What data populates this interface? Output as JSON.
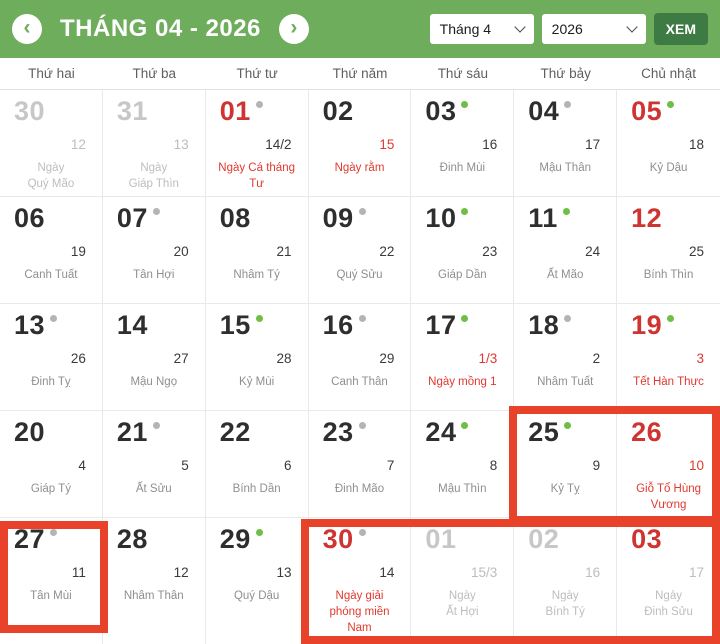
{
  "header": {
    "title": "THÁNG 04 - 2026",
    "month_select_value": "Tháng 4",
    "year_select_value": "2026",
    "view_button_label": "XEM"
  },
  "weekdays": [
    "Thứ hai",
    "Thứ ba",
    "Thứ tư",
    "Thứ năm",
    "Thứ sáu",
    "Thứ bảy",
    "Chủ nhật"
  ],
  "days": [
    {
      "solar": "30",
      "lunar": "12",
      "label": "Ngày\nQuý Mão",
      "muted": true,
      "dot": null,
      "solar_red": false,
      "lunar_red": false,
      "label_red": false
    },
    {
      "solar": "31",
      "lunar": "13",
      "label": "Ngày\nGiáp Thìn",
      "muted": true,
      "dot": null,
      "solar_red": false,
      "lunar_red": false,
      "label_red": false
    },
    {
      "solar": "01",
      "lunar": "14/2",
      "label": "Ngày Cá tháng\nTư",
      "muted": false,
      "dot": "gray",
      "solar_red": true,
      "lunar_red": false,
      "label_red": true
    },
    {
      "solar": "02",
      "lunar": "15",
      "label": "Ngày rằm",
      "muted": false,
      "dot": null,
      "solar_red": false,
      "lunar_red": true,
      "label_red": true
    },
    {
      "solar": "03",
      "lunar": "16",
      "label": "Đinh Mùi",
      "muted": false,
      "dot": "green",
      "solar_red": false,
      "lunar_red": false,
      "label_red": false
    },
    {
      "solar": "04",
      "lunar": "17",
      "label": "Mậu Thân",
      "muted": false,
      "dot": "gray",
      "solar_red": false,
      "lunar_red": false,
      "label_red": false
    },
    {
      "solar": "05",
      "lunar": "18",
      "label": "Kỷ Dậu",
      "muted": false,
      "dot": "green",
      "solar_red": true,
      "lunar_red": false,
      "label_red": false
    },
    {
      "solar": "06",
      "lunar": "19",
      "label": "Canh Tuất",
      "muted": false,
      "dot": null,
      "solar_red": false,
      "lunar_red": false,
      "label_red": false
    },
    {
      "solar": "07",
      "lunar": "20",
      "label": "Tân Hợi",
      "muted": false,
      "dot": "gray",
      "solar_red": false,
      "lunar_red": false,
      "label_red": false
    },
    {
      "solar": "08",
      "lunar": "21",
      "label": "Nhâm Tý",
      "muted": false,
      "dot": null,
      "solar_red": false,
      "lunar_red": false,
      "label_red": false
    },
    {
      "solar": "09",
      "lunar": "22",
      "label": "Quý Sửu",
      "muted": false,
      "dot": "gray",
      "solar_red": false,
      "lunar_red": false,
      "label_red": false
    },
    {
      "solar": "10",
      "lunar": "23",
      "label": "Giáp Dần",
      "muted": false,
      "dot": "green",
      "solar_red": false,
      "lunar_red": false,
      "label_red": false
    },
    {
      "solar": "11",
      "lunar": "24",
      "label": "Ất Mão",
      "muted": false,
      "dot": "green",
      "solar_red": false,
      "lunar_red": false,
      "label_red": false
    },
    {
      "solar": "12",
      "lunar": "25",
      "label": "Bính Thìn",
      "muted": false,
      "dot": null,
      "solar_red": true,
      "lunar_red": false,
      "label_red": false
    },
    {
      "solar": "13",
      "lunar": "26",
      "label": "Đinh Tỵ",
      "muted": false,
      "dot": "gray",
      "solar_red": false,
      "lunar_red": false,
      "label_red": false
    },
    {
      "solar": "14",
      "lunar": "27",
      "label": "Mậu Ngọ",
      "muted": false,
      "dot": null,
      "solar_red": false,
      "lunar_red": false,
      "label_red": false
    },
    {
      "solar": "15",
      "lunar": "28",
      "label": "Kỷ Mùi",
      "muted": false,
      "dot": "green",
      "solar_red": false,
      "lunar_red": false,
      "label_red": false
    },
    {
      "solar": "16",
      "lunar": "29",
      "label": "Canh Thân",
      "muted": false,
      "dot": "gray",
      "solar_red": false,
      "lunar_red": false,
      "label_red": false
    },
    {
      "solar": "17",
      "lunar": "1/3",
      "label": "Ngày mồng 1",
      "muted": false,
      "dot": "green",
      "solar_red": false,
      "lunar_red": true,
      "label_red": true
    },
    {
      "solar": "18",
      "lunar": "2",
      "label": "Nhâm Tuất",
      "muted": false,
      "dot": "gray",
      "solar_red": false,
      "lunar_red": false,
      "label_red": false
    },
    {
      "solar": "19",
      "lunar": "3",
      "label": "Tết Hàn Thực",
      "muted": false,
      "dot": "green",
      "solar_red": true,
      "lunar_red": true,
      "label_red": true
    },
    {
      "solar": "20",
      "lunar": "4",
      "label": "Giáp Tý",
      "muted": false,
      "dot": null,
      "solar_red": false,
      "lunar_red": false,
      "label_red": false
    },
    {
      "solar": "21",
      "lunar": "5",
      "label": "Ất Sửu",
      "muted": false,
      "dot": "gray",
      "solar_red": false,
      "lunar_red": false,
      "label_red": false
    },
    {
      "solar": "22",
      "lunar": "6",
      "label": "Bính Dần",
      "muted": false,
      "dot": null,
      "solar_red": false,
      "lunar_red": false,
      "label_red": false
    },
    {
      "solar": "23",
      "lunar": "7",
      "label": "Đinh Mão",
      "muted": false,
      "dot": "gray",
      "solar_red": false,
      "lunar_red": false,
      "label_red": false
    },
    {
      "solar": "24",
      "lunar": "8",
      "label": "Mậu Thìn",
      "muted": false,
      "dot": "green",
      "solar_red": false,
      "lunar_red": false,
      "label_red": false
    },
    {
      "solar": "25",
      "lunar": "9",
      "label": "Kỷ Tỵ",
      "muted": false,
      "dot": "green",
      "solar_red": false,
      "lunar_red": false,
      "label_red": false
    },
    {
      "solar": "26",
      "lunar": "10",
      "label": "Giỗ Tổ Hùng\nVương",
      "muted": false,
      "dot": null,
      "solar_red": true,
      "lunar_red": true,
      "label_red": true
    },
    {
      "solar": "27",
      "lunar": "11",
      "label": "Tân Mùi",
      "muted": false,
      "dot": "gray",
      "solar_red": false,
      "lunar_red": false,
      "label_red": false
    },
    {
      "solar": "28",
      "lunar": "12",
      "label": "Nhâm Thân",
      "muted": false,
      "dot": null,
      "solar_red": false,
      "lunar_red": false,
      "label_red": false
    },
    {
      "solar": "29",
      "lunar": "13",
      "label": "Quý Dậu",
      "muted": false,
      "dot": "green",
      "solar_red": false,
      "lunar_red": false,
      "label_red": false
    },
    {
      "solar": "30",
      "lunar": "14",
      "label": "Ngày giải\nphóng miền\nNam",
      "muted": false,
      "dot": "gray",
      "solar_red": true,
      "lunar_red": false,
      "label_red": true
    },
    {
      "solar": "01",
      "lunar": "15/3",
      "label": "Ngày\nẤt Hợi",
      "muted": true,
      "dot": null,
      "solar_red": false,
      "lunar_red": false,
      "label_red": false
    },
    {
      "solar": "02",
      "lunar": "16",
      "label": "Ngày\nBính Tý",
      "muted": true,
      "dot": null,
      "solar_red": false,
      "lunar_red": false,
      "label_red": false
    },
    {
      "solar": "03",
      "lunar": "17",
      "label": "Ngày\nĐinh Sửu",
      "muted": true,
      "dot": null,
      "solar_red": true,
      "lunar_red": false,
      "label_red": false
    }
  ],
  "highlights": [
    {
      "days_covered": [
        "25",
        "26"
      ]
    },
    {
      "days_covered": [
        "27"
      ]
    },
    {
      "days_covered": [
        "30",
        "01",
        "02",
        "03"
      ]
    }
  ],
  "colors": {
    "header_green": "#6ead5c",
    "button_green": "#3d7a44",
    "red": "#ce3431",
    "red_text": "#e0392f",
    "ink": "#2e2e2e",
    "lunar_ink": "#3a3a3a",
    "canchi_gray": "#8f8f8f",
    "muted": "#c7c7c7",
    "muted_small": "#bdbdbd",
    "grid_border": "#e9e9e9",
    "dot_green": "#6fbf44",
    "dot_gray": "#b4b4b4",
    "highlight": "#e8432a"
  }
}
